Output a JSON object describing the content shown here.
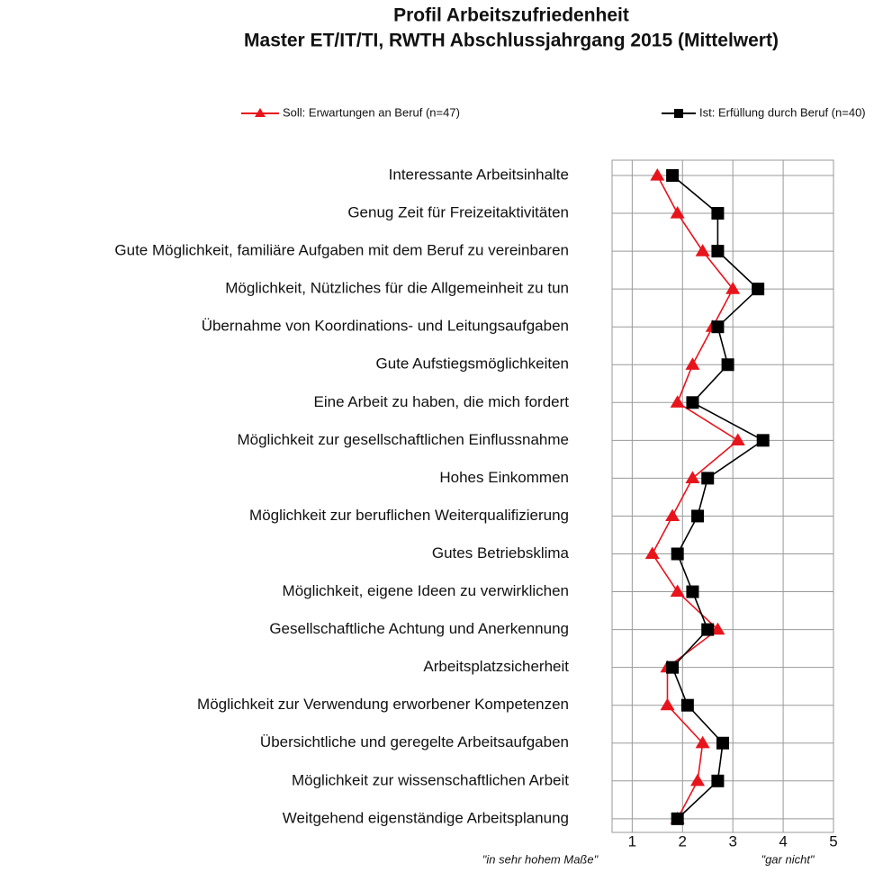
{
  "chart_data": {
    "type": "line",
    "orientation": "horizontal",
    "title": [
      "Profil Arbeitszufriedenheit",
      "Master ET/IT/TI, RWTH Abschlussjahrgang 2015 (Mittelwert)"
    ],
    "categories": [
      "Interessante Arbeitsinhalte",
      "Genug Zeit für Freizeitaktivitäten",
      "Gute Möglichkeit, familiäre Aufgaben mit dem Beruf zu vereinbaren",
      "Möglichkeit, Nützliches für die Allgemeinheit zu tun",
      "Übernahme von Koordinations- und Leitungsaufgaben",
      "Gute Aufstiegsmöglichkeiten",
      "Eine Arbeit zu haben, die mich fordert",
      "Möglichkeit zur gesellschaftlichen Einflussnahme",
      "Hohes Einkommen",
      "Möglichkeit zur beruflichen Weiterqualifizierung",
      "Gutes Betriebsklima",
      "Möglichkeit, eigene Ideen zu verwirklichen",
      "Gesellschaftliche Achtung und Anerkennung",
      "Arbeitsplatzsicherheit",
      "Möglichkeit zur Verwendung erworbener Kompetenzen",
      "Übersichtliche und geregelte Arbeitsaufgaben",
      "Möglichkeit zur wissenschaftlichen Arbeit",
      "Weitgehend eigenständige Arbeitsplanung"
    ],
    "series": [
      {
        "name": "Soll: Erwartungen an Beruf (n=47)",
        "color": "#e8141c",
        "marker": "triangle",
        "values": [
          1.5,
          1.9,
          2.4,
          3.0,
          2.6,
          2.2,
          1.9,
          3.1,
          2.2,
          1.8,
          1.4,
          1.9,
          2.7,
          1.7,
          1.7,
          2.4,
          2.3,
          1.9
        ]
      },
      {
        "name": "Ist: Erfüllung durch Beruf (n=40)",
        "color": "#000000",
        "marker": "square",
        "values": [
          1.8,
          2.7,
          2.7,
          3.5,
          2.7,
          2.9,
          2.2,
          3.6,
          2.5,
          2.3,
          1.9,
          2.2,
          2.5,
          1.8,
          2.1,
          2.8,
          2.7,
          1.9
        ]
      }
    ],
    "xlim": [
      0.6,
      5
    ],
    "xticks": [
      1,
      2,
      3,
      4,
      5
    ],
    "grid": true,
    "annotations": [
      "\"in sehr hohem Maße\"",
      "\"gar nicht\""
    ]
  }
}
